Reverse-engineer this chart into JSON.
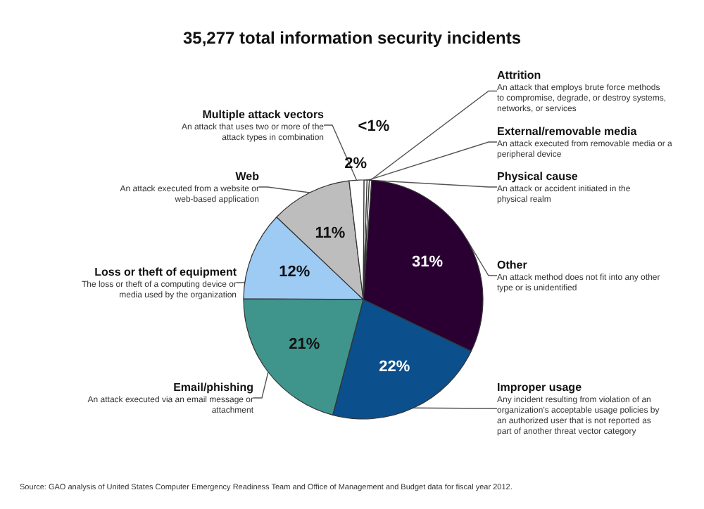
{
  "chart_data": {
    "type": "pie",
    "title": "35,277 total information security incidents",
    "categories": [
      "Other",
      "Improper usage",
      "Email/phishing",
      "Loss or theft of equipment",
      "Web",
      "Multiple attack vectors",
      "Physical cause",
      "External/removable media",
      "Attrition"
    ],
    "values": [
      31,
      22,
      21,
      12,
      11,
      2,
      0.4,
      0.3,
      0.3
    ],
    "colors": [
      "#2a0033",
      "#0b4f8c",
      "#3f958c",
      "#9ecbf4",
      "#bdbdbd",
      "#ffffff",
      "#ffffff",
      "#ffffff",
      "#ffffff"
    ],
    "value_labels": [
      "31%",
      "22%",
      "21%",
      "12%",
      "11%",
      "2%",
      null,
      null,
      "<1%"
    ],
    "annotations": [
      "An attack method does not fit into any other type or is unidentified",
      "Any incident resulting from violation of an organization's acceptable usage policies by an authorized user that is not reported as part of another threat vector category",
      "An attack executed via an email message or attachment",
      "The loss or theft of a computing device or media used by the organization",
      "An attack executed from a website or web-based application",
      "An attack that uses two or more of the attack types in combination",
      "An attack or accident initiated in the physical realm",
      "An attack executed from removable media or a peripheral device",
      "An attack that employs brute force methods to compromise, degrade, or destroy systems, networks, or services",
      "Source: GAO analysis of United States Computer Emergency Readiness Team and Office of Management and Budget data for fiscal year 2012."
    ],
    "legend": false
  }
}
